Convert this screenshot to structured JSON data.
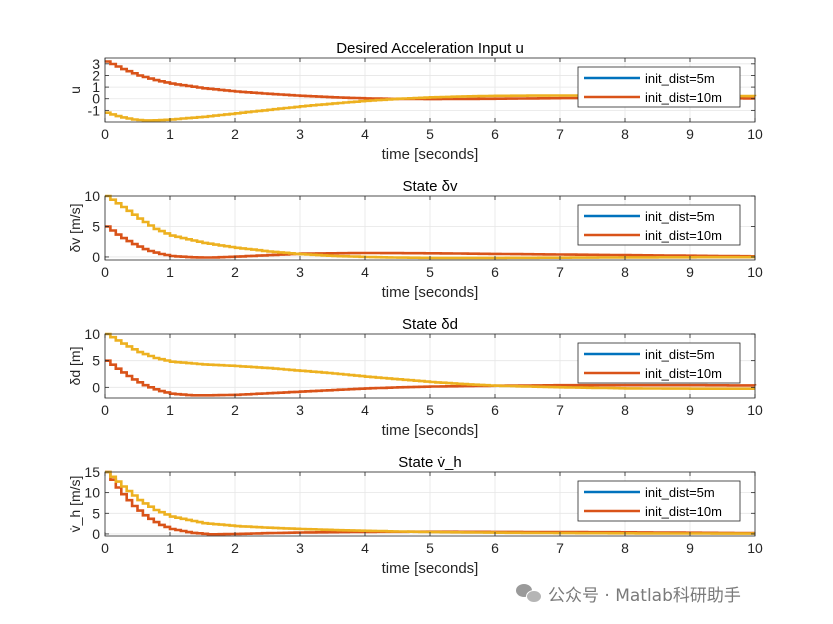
{
  "chart_data": [
    {
      "type": "line",
      "title": "Desired Acceleration Input u",
      "xlabel": "time [seconds]",
      "ylabel": "u",
      "xlim": [
        0,
        10
      ],
      "ylim": [
        -2,
        3.5
      ],
      "xticks": [
        "0",
        "1",
        "2",
        "3",
        "4",
        "5",
        "6",
        "7",
        "8",
        "9",
        "10"
      ],
      "yticks": [
        3,
        2,
        1,
        0,
        -1
      ],
      "ytick_labels": [
        "3",
        "2",
        "1",
        "0",
        "-1"
      ],
      "legend": [
        "init_dist=5m",
        "init_dist=10m"
      ],
      "legend_loc": "right",
      "series": [
        {
          "name": "init_dist=10m (orange)",
          "color": "#D95319",
          "x": [
            0,
            0.25,
            0.5,
            0.75,
            1,
            1.5,
            2,
            2.5,
            3,
            3.5,
            4,
            4.5,
            5,
            5.5,
            6,
            7,
            8,
            9,
            10
          ],
          "y": [
            3.2,
            2.55,
            2.0,
            1.6,
            1.3,
            0.9,
            0.62,
            0.42,
            0.25,
            0.12,
            0.03,
            -0.02,
            -0.03,
            -0.02,
            0.0,
            0.05,
            0.05,
            0.04,
            0.03
          ]
        },
        {
          "name": "init_dist=5m (yellow)",
          "color": "#EDB120",
          "x": [
            0,
            0.2,
            0.4,
            0.6,
            0.8,
            1,
            1.5,
            2,
            2.5,
            3,
            3.5,
            4,
            4.5,
            5,
            5.5,
            6,
            7,
            8,
            9,
            10
          ],
          "y": [
            -1.2,
            -1.55,
            -1.78,
            -1.87,
            -1.85,
            -1.78,
            -1.55,
            -1.25,
            -0.95,
            -0.65,
            -0.4,
            -0.18,
            0.0,
            0.12,
            0.2,
            0.25,
            0.28,
            0.27,
            0.25,
            0.22
          ]
        }
      ]
    },
    {
      "type": "line",
      "title": "State δv",
      "xlabel": "time [seconds]",
      "ylabel": "δv [m/s]",
      "xlim": [
        0,
        10
      ],
      "ylim": [
        -0.5,
        10
      ],
      "xticks": [
        "0",
        "1",
        "2",
        "3",
        "4",
        "5",
        "6",
        "7",
        "8",
        "9",
        "10"
      ],
      "yticks": [
        10,
        5,
        0
      ],
      "ytick_labels": [
        "10",
        "5",
        "0"
      ],
      "legend": [
        "init_dist=5m",
        "init_dist=10m"
      ],
      "legend_loc": "right",
      "series": [
        {
          "name": "init_dist=10m (orange)",
          "color": "#D95319",
          "x": [
            0,
            0.2,
            0.4,
            0.6,
            0.8,
            1,
            1.3,
            1.6,
            2,
            2.5,
            3,
            4,
            5,
            6,
            7,
            8,
            9,
            10
          ],
          "y": [
            5,
            3.4,
            2.2,
            1.2,
            0.55,
            0.15,
            -0.05,
            -0.1,
            0.05,
            0.3,
            0.55,
            0.65,
            0.6,
            0.5,
            0.4,
            0.3,
            0.2,
            0.1
          ]
        },
        {
          "name": "init_dist=5m (yellow)",
          "color": "#EDB120",
          "x": [
            0,
            0.25,
            0.5,
            0.75,
            1,
            1.5,
            2,
            2.5,
            3,
            3.5,
            4,
            4.5,
            5,
            6,
            7,
            8,
            9,
            10
          ],
          "y": [
            10,
            8.2,
            6.3,
            4.6,
            3.5,
            2.3,
            1.5,
            0.9,
            0.45,
            0.15,
            0.0,
            -0.1,
            -0.15,
            -0.15,
            -0.12,
            -0.08,
            -0.05,
            -0.03
          ]
        }
      ]
    },
    {
      "type": "line",
      "title": "State δd",
      "xlabel": "time [seconds]",
      "ylabel": "δd [m]",
      "xlim": [
        0,
        10
      ],
      "ylim": [
        -2,
        10
      ],
      "xticks": [
        "0",
        "1",
        "2",
        "3",
        "4",
        "5",
        "6",
        "7",
        "8",
        "9",
        "10"
      ],
      "yticks": [
        10,
        5,
        0
      ],
      "ytick_labels": [
        "10",
        "5",
        "0"
      ],
      "legend": [
        "init_dist=5m",
        "init_dist=10m"
      ],
      "legend_loc": "right",
      "series": [
        {
          "name": "init_dist=10m (orange)",
          "color": "#D95319",
          "x": [
            0,
            0.2,
            0.4,
            0.6,
            0.8,
            1,
            1.3,
            1.6,
            2,
            2.5,
            3,
            3.5,
            4,
            4.5,
            5,
            6,
            7,
            8,
            9,
            10
          ],
          "y": [
            5,
            3.2,
            1.6,
            0.3,
            -0.6,
            -1.2,
            -1.5,
            -1.5,
            -1.4,
            -1.1,
            -0.8,
            -0.5,
            -0.2,
            0.0,
            0.15,
            0.3,
            0.4,
            0.4,
            0.4,
            0.35
          ]
        },
        {
          "name": "init_dist=5m (yellow)",
          "color": "#EDB120",
          "x": [
            0,
            0.25,
            0.5,
            0.75,
            1,
            1.5,
            2,
            2.5,
            3,
            3.5,
            4,
            4.5,
            5,
            5.5,
            6,
            7,
            8,
            9,
            10
          ],
          "y": [
            10,
            8.2,
            6.6,
            5.5,
            4.8,
            4.3,
            4.0,
            3.6,
            3.1,
            2.6,
            2.0,
            1.5,
            1.0,
            0.6,
            0.3,
            0.0,
            -0.2,
            -0.25,
            -0.25
          ]
        }
      ]
    },
    {
      "type": "line",
      "title": "State v̇_h",
      "xlabel": "time [seconds]",
      "ylabel": "v̇_h [m/s]",
      "xlim": [
        0,
        10
      ],
      "ylim": [
        -0.5,
        15
      ],
      "xticks": [
        "0",
        "1",
        "2",
        "3",
        "4",
        "5",
        "6",
        "7",
        "8",
        "9",
        "10"
      ],
      "yticks": [
        15,
        10,
        5,
        0
      ],
      "ytick_labels": [
        "15",
        "10",
        "5",
        "0"
      ],
      "legend": [
        "init_dist=5m",
        "init_dist=10m"
      ],
      "legend_loc": "right",
      "series": [
        {
          "name": "init_dist=10m (orange)",
          "color": "#D95319",
          "x": [
            0,
            0.2,
            0.4,
            0.6,
            0.8,
            1,
            1.3,
            1.6,
            2,
            2.5,
            3,
            4,
            5,
            6,
            7,
            8,
            9,
            10
          ],
          "y": [
            15,
            10.5,
            7,
            4.3,
            2.4,
            1.2,
            0.3,
            -0.1,
            0.0,
            0.2,
            0.35,
            0.5,
            0.55,
            0.5,
            0.45,
            0.4,
            0.3,
            0.2
          ]
        },
        {
          "name": "init_dist=5m (yellow)",
          "color": "#EDB120",
          "x": [
            0,
            0.25,
            0.5,
            0.75,
            1,
            1.5,
            2,
            2.5,
            3,
            3.5,
            4,
            5,
            6,
            7,
            8,
            9,
            10
          ],
          "y": [
            15,
            11.5,
            8.2,
            5.8,
            4.2,
            2.6,
            1.9,
            1.5,
            1.2,
            0.95,
            0.75,
            0.45,
            0.3,
            0.2,
            0.15,
            0.1,
            0.08
          ]
        }
      ]
    }
  ],
  "legend_colors": {
    "init_dist=5m": "#0072BD",
    "init_dist=10m": "#D95319"
  },
  "watermark": "公众号 · Matlab科研助手"
}
